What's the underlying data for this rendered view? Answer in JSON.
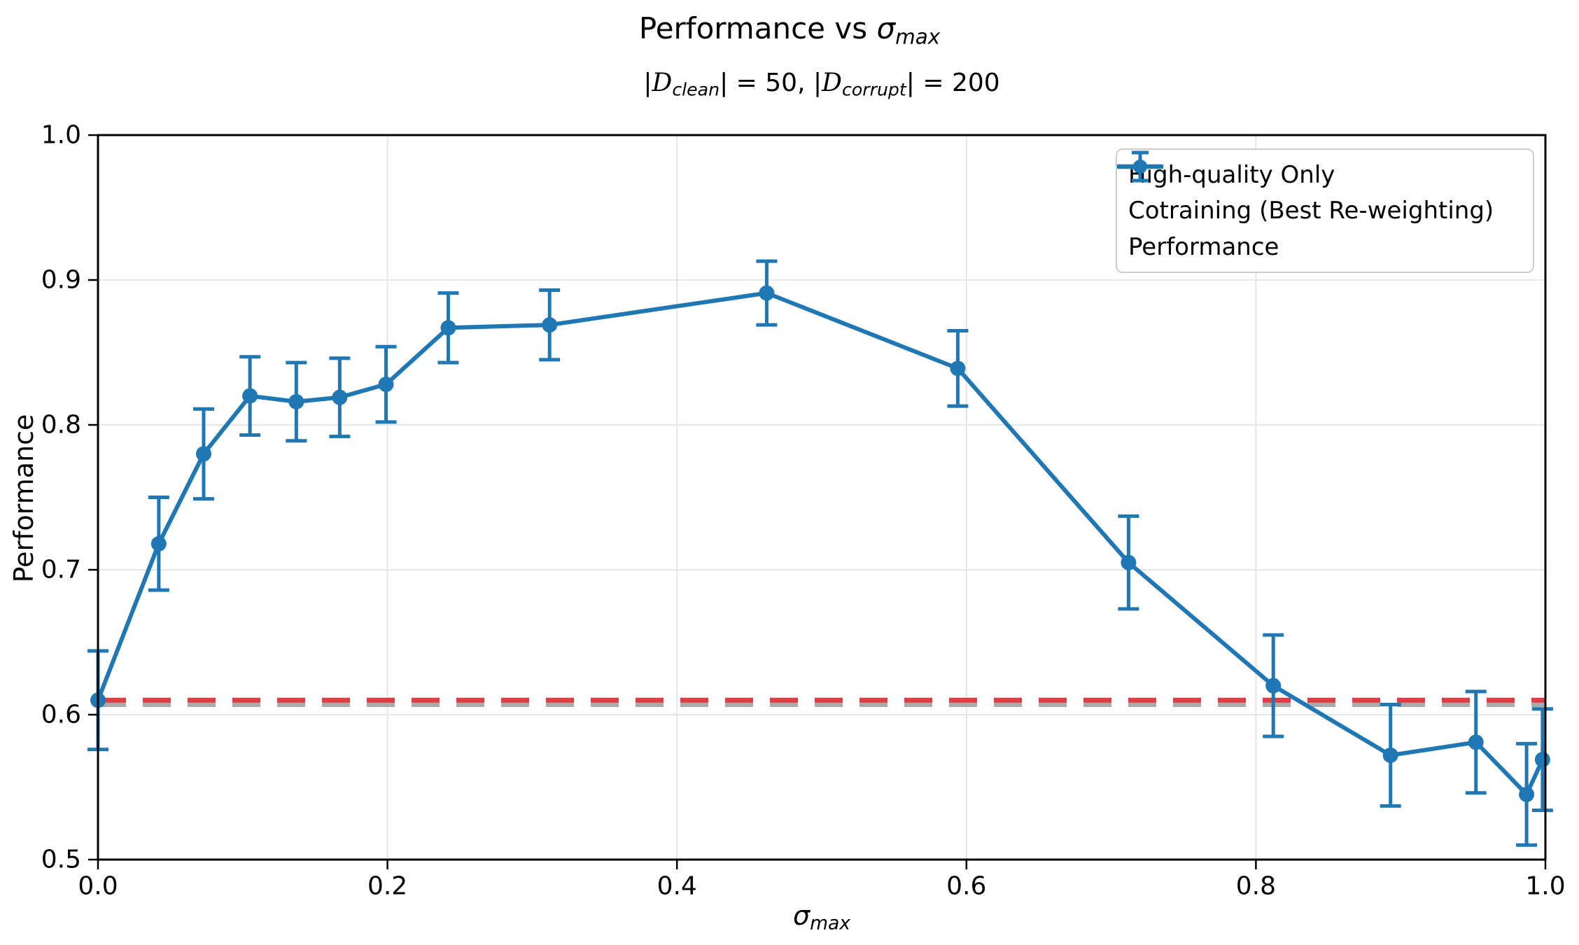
{
  "figure": {
    "title": {
      "prefix": "Performance vs ",
      "sigma": "σ",
      "sigma_sub": "max"
    },
    "subtitle": {
      "open1": "|",
      "d1": "D",
      "d1_sub": "clean",
      "close1": "| = 50, ",
      "open2": "|",
      "d2": "D",
      "d2_sub": "corrupt",
      "close2": "| = 200"
    }
  },
  "axes": {
    "ylabel": "Performance",
    "xlabel_sigma": "σ",
    "xlabel_sub": "max",
    "xtick_labels": [
      "0.0",
      "0.2",
      "0.4",
      "0.6",
      "0.8",
      "1.0"
    ],
    "ytick_labels": [
      "0.5",
      "0.6",
      "0.7",
      "0.8",
      "0.9",
      "1.0"
    ]
  },
  "legend": {
    "items": [
      {
        "label": "High-quality Only",
        "style": "dashed",
        "color": "#dd3d43"
      },
      {
        "label": "Cotraining (Best Re-weighting)",
        "style": "dashed",
        "color": "#aaaaaa"
      },
      {
        "label": "Performance",
        "style": "errorbar-line",
        "color": "#1f77b4"
      }
    ]
  },
  "colors": {
    "blue": "#1f77b4",
    "red": "#dd3d43",
    "gray": "#aaaaaa",
    "grid": "#e6e6e6",
    "spine": "#000000",
    "legend_border": "#cccccc",
    "background": "#ffffff"
  },
  "chart_data": {
    "type": "line",
    "title": "Performance vs σ_max",
    "subtitle": "|D_clean| = 50, |D_corrupt| = 200",
    "xlabel": "σ_max",
    "ylabel": "Performance",
    "xlim": [
      0.0,
      1.0
    ],
    "ylim": [
      0.5,
      1.0
    ],
    "xticks": [
      0.0,
      0.2,
      0.4,
      0.6,
      0.8,
      1.0
    ],
    "yticks": [
      0.5,
      0.6,
      0.7,
      0.8,
      0.9,
      1.0
    ],
    "grid": true,
    "legend_position": "upper right",
    "series": [
      {
        "name": "High-quality Only",
        "type": "hline",
        "y": 0.61,
        "color": "#dd3d43",
        "linestyle": "dashed"
      },
      {
        "name": "Cotraining (Best Re-weighting)",
        "type": "hline",
        "y": 0.607,
        "color": "#aaaaaa",
        "linestyle": "dashed"
      },
      {
        "name": "Performance",
        "type": "errorbar-line",
        "color": "#1f77b4",
        "x": [
          0.0,
          0.042,
          0.073,
          0.105,
          0.137,
          0.167,
          0.199,
          0.242,
          0.312,
          0.462,
          0.594,
          0.712,
          0.812,
          0.893,
          0.952,
          0.987,
          0.998
        ],
        "y": [
          0.61,
          0.718,
          0.78,
          0.82,
          0.816,
          0.819,
          0.828,
          0.867,
          0.869,
          0.891,
          0.839,
          0.705,
          0.62,
          0.572,
          0.581,
          0.545,
          0.569
        ],
        "yerr": [
          0.034,
          0.032,
          0.031,
          0.027,
          0.027,
          0.027,
          0.026,
          0.024,
          0.024,
          0.022,
          0.026,
          0.032,
          0.035,
          0.035,
          0.035,
          0.035,
          0.035
        ]
      }
    ]
  }
}
